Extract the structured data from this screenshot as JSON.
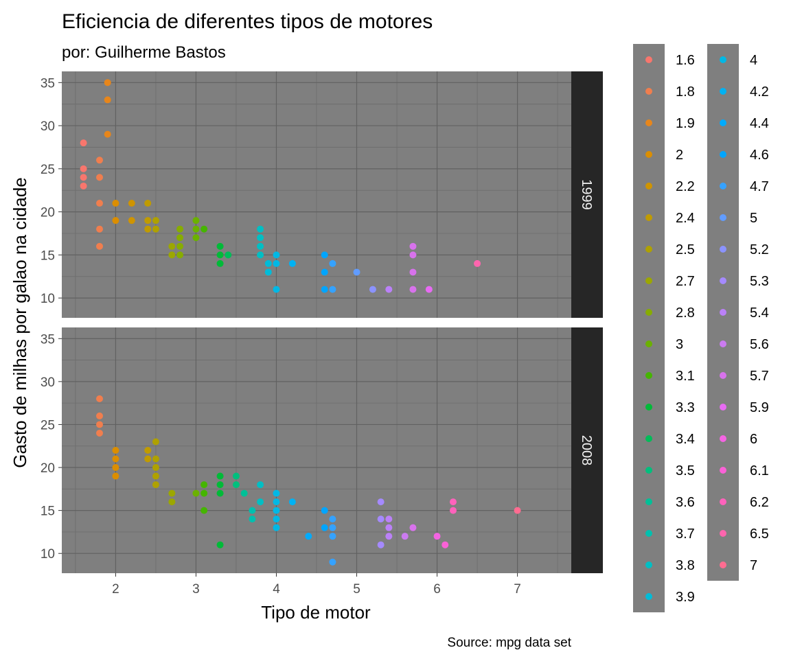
{
  "chart_data": {
    "type": "scatter",
    "title": "Eficiencia de diferentes tipos de motores",
    "subtitle": "por: Guilherme Bastos",
    "xlabel": "Tipo de motor",
    "ylabel": "Gasto de milhas por galao na cidade",
    "caption": "Source: mpg data set",
    "xlim": [
      1.33,
      7.67
    ],
    "ylim": [
      7.7,
      36.3
    ],
    "x_ticks": [
      2,
      3,
      4,
      5,
      6,
      7
    ],
    "y_ticks": [
      10,
      15,
      20,
      25,
      30,
      35
    ],
    "grid": true,
    "legend_position": "right",
    "legend_entries": [
      "1.6",
      "1.8",
      "1.9",
      "2",
      "2.2",
      "2.4",
      "2.5",
      "2.7",
      "2.8",
      "3",
      "3.1",
      "3.3",
      "3.4",
      "3.5",
      "3.6",
      "3.7",
      "3.8",
      "3.9",
      "4",
      "4.2",
      "4.4",
      "4.6",
      "4.7",
      "5",
      "5.2",
      "5.3",
      "5.4",
      "5.6",
      "5.7",
      "5.9",
      "6",
      "6.1",
      "6.2",
      "6.5",
      "7"
    ],
    "legend_colors": [
      "#F8766D",
      "#F07E4E",
      "#E7861B",
      "#DB8E00",
      "#CF9400",
      "#C09B00",
      "#AFA100",
      "#9CA700",
      "#87AC00",
      "#6BB100",
      "#45B500",
      "#00BA38",
      "#00BC59",
      "#00BF7D",
      "#00C097",
      "#00C0AF",
      "#00BFC4",
      "#00BCD8",
      "#00B8E5",
      "#00B2F3",
      "#00ABFD",
      "#00A5FF",
      "#35A2FF",
      "#619CFF",
      "#8B93FF",
      "#A58AFF",
      "#BB81F8",
      "#CB7BF0",
      "#D872EC",
      "#E76BF3",
      "#F564E3",
      "#FB61D7",
      "#FF62BC",
      "#FF65AE",
      "#FF6C91"
    ],
    "panels": [
      {
        "label": "1999",
        "points": [
          [
            1.6,
            28
          ],
          [
            1.6,
            25
          ],
          [
            1.6,
            24
          ],
          [
            1.6,
            23
          ],
          [
            1.8,
            26
          ],
          [
            1.8,
            24
          ],
          [
            1.8,
            21
          ],
          [
            1.8,
            18
          ],
          [
            1.8,
            16
          ],
          [
            1.9,
            35
          ],
          [
            1.9,
            33
          ],
          [
            1.9,
            29
          ],
          [
            2,
            21
          ],
          [
            2,
            19
          ],
          [
            2.2,
            21
          ],
          [
            2.2,
            19
          ],
          [
            2.4,
            21
          ],
          [
            2.4,
            19
          ],
          [
            2.4,
            18
          ],
          [
            2.5,
            19
          ],
          [
            2.5,
            18
          ],
          [
            2.7,
            16
          ],
          [
            2.7,
            15
          ],
          [
            2.8,
            18
          ],
          [
            2.8,
            17
          ],
          [
            2.8,
            16
          ],
          [
            2.8,
            15
          ],
          [
            3,
            19
          ],
          [
            3,
            18
          ],
          [
            3,
            17
          ],
          [
            3.1,
            18
          ],
          [
            3.3,
            16
          ],
          [
            3.3,
            15
          ],
          [
            3.3,
            14
          ],
          [
            3.4,
            15
          ],
          [
            3.8,
            18
          ],
          [
            3.8,
            17
          ],
          [
            3.8,
            16
          ],
          [
            3.8,
            15
          ],
          [
            3.9,
            14
          ],
          [
            3.9,
            13
          ],
          [
            4,
            15
          ],
          [
            4,
            14
          ],
          [
            4,
            11
          ],
          [
            4.2,
            14
          ],
          [
            4.6,
            15
          ],
          [
            4.6,
            13
          ],
          [
            4.6,
            11
          ],
          [
            4.7,
            14
          ],
          [
            4.7,
            11
          ],
          [
            5,
            13
          ],
          [
            5.2,
            11
          ],
          [
            5.4,
            11
          ],
          [
            5.7,
            16
          ],
          [
            5.7,
            15
          ],
          [
            5.7,
            13
          ],
          [
            5.7,
            11
          ],
          [
            5.9,
            11
          ],
          [
            6.5,
            14
          ]
        ]
      },
      {
        "label": "2008",
        "points": [
          [
            1.8,
            28
          ],
          [
            1.8,
            26
          ],
          [
            1.8,
            25
          ],
          [
            1.8,
            24
          ],
          [
            2,
            22
          ],
          [
            2,
            21
          ],
          [
            2,
            20
          ],
          [
            2,
            19
          ],
          [
            2.4,
            22
          ],
          [
            2.4,
            21
          ],
          [
            2.5,
            23
          ],
          [
            2.5,
            21
          ],
          [
            2.5,
            20
          ],
          [
            2.5,
            19
          ],
          [
            2.5,
            18
          ],
          [
            2.7,
            17
          ],
          [
            2.7,
            16
          ],
          [
            3,
            17
          ],
          [
            3.1,
            18
          ],
          [
            3.1,
            17
          ],
          [
            3.1,
            15
          ],
          [
            3.3,
            19
          ],
          [
            3.3,
            18
          ],
          [
            3.3,
            17
          ],
          [
            3.3,
            11
          ],
          [
            3.5,
            19
          ],
          [
            3.5,
            18
          ],
          [
            3.6,
            17
          ],
          [
            3.7,
            15
          ],
          [
            3.7,
            14
          ],
          [
            3.8,
            18
          ],
          [
            3.8,
            16
          ],
          [
            4,
            17
          ],
          [
            4,
            16
          ],
          [
            4,
            15
          ],
          [
            4,
            14
          ],
          [
            4,
            13
          ],
          [
            4.2,
            16
          ],
          [
            4.4,
            12
          ],
          [
            4.6,
            15
          ],
          [
            4.6,
            13
          ],
          [
            4.7,
            14
          ],
          [
            4.7,
            13
          ],
          [
            4.7,
            12
          ],
          [
            4.7,
            9
          ],
          [
            5.3,
            16
          ],
          [
            5.3,
            14
          ],
          [
            5.3,
            11
          ],
          [
            5.4,
            14
          ],
          [
            5.4,
            13
          ],
          [
            5.4,
            12
          ],
          [
            5.6,
            12
          ],
          [
            5.7,
            13
          ],
          [
            6,
            12
          ],
          [
            6.1,
            11
          ],
          [
            6.2,
            16
          ],
          [
            6.2,
            15
          ],
          [
            7,
            15
          ]
        ]
      }
    ]
  }
}
